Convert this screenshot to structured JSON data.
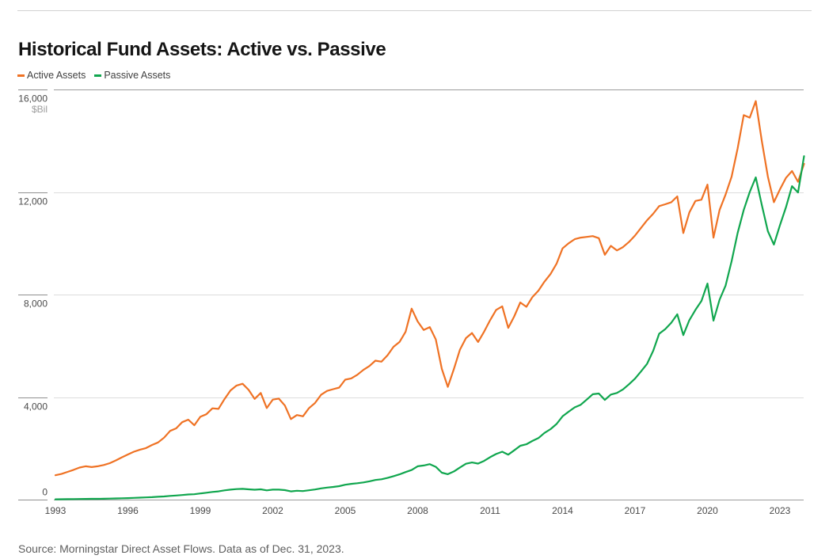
{
  "header": {
    "title": "Historical Fund Assets: Active vs. Passive"
  },
  "legend": [
    {
      "label": "Active Assets",
      "color": "#ef7224"
    },
    {
      "label": "Passive Assets",
      "color": "#10a64e"
    }
  ],
  "footer": {
    "source": "Source: Morningstar Direct Asset Flows. Data as of Dec. 31, 2023."
  },
  "chart_data": {
    "type": "line",
    "title": "Historical Fund Assets: Active vs. Passive",
    "xlabel": "",
    "ylabel": "$Bil",
    "unit_label": "$Bil",
    "xlim": [
      1993,
      2024
    ],
    "ylim": [
      0,
      16000
    ],
    "grid": true,
    "legend_position": "top-left",
    "y_ticks": [
      0,
      4000,
      8000,
      12000,
      16000
    ],
    "y_tick_labels": [
      "0",
      "4,000",
      "8,000",
      "12,000",
      "16,000"
    ],
    "x_tick_labels": [
      "1993",
      "1996",
      "1999",
      "2002",
      "2005",
      "2008",
      "2011",
      "2014",
      "2017",
      "2020",
      "2023"
    ],
    "x_tick_years": [
      1993,
      1996,
      1999,
      2002,
      2005,
      2008,
      2011,
      2014,
      2017,
      2020,
      2023
    ],
    "x_start": 1993,
    "x_step": 0.25,
    "series": [
      {
        "name": "Active Assets",
        "color": "#ef7224",
        "values": [
          950,
          1000,
          1080,
          1160,
          1250,
          1300,
          1270,
          1300,
          1350,
          1420,
          1530,
          1650,
          1760,
          1870,
          1950,
          2010,
          2130,
          2230,
          2420,
          2680,
          2780,
          3020,
          3120,
          2900,
          3230,
          3330,
          3560,
          3540,
          3920,
          4260,
          4450,
          4520,
          4280,
          3930,
          4160,
          3570,
          3900,
          3940,
          3670,
          3140,
          3300,
          3250,
          3570,
          3770,
          4090,
          4240,
          4310,
          4370,
          4680,
          4730,
          4870,
          5060,
          5210,
          5420,
          5380,
          5630,
          5960,
          6150,
          6550,
          7450,
          6950,
          6620,
          6730,
          6250,
          5100,
          4400,
          5100,
          5850,
          6300,
          6500,
          6150,
          6550,
          7000,
          7400,
          7540,
          6700,
          7150,
          7690,
          7520,
          7900,
          8150,
          8500,
          8800,
          9200,
          9800,
          10000,
          10160,
          10220,
          10250,
          10280,
          10200,
          9550,
          9900,
          9720,
          9850,
          10050,
          10300,
          10600,
          10900,
          11150,
          11450,
          11520,
          11600,
          11830,
          10400,
          11200,
          11650,
          11700,
          12290,
          10220,
          11300,
          11900,
          12600,
          13700,
          15000,
          14900,
          15550,
          14000,
          12600,
          11600,
          12100,
          12550,
          12820,
          12400,
          13100
        ]
      },
      {
        "name": "Passive Assets",
        "color": "#10a64e",
        "values": [
          12,
          15,
          18,
          21,
          25,
          28,
          30,
          32,
          35,
          40,
          45,
          52,
          60,
          68,
          76,
          85,
          95,
          110,
          125,
          145,
          160,
          180,
          200,
          210,
          240,
          270,
          300,
          320,
          360,
          390,
          410,
          420,
          400,
          385,
          400,
          360,
          390,
          390,
          370,
          320,
          345,
          335,
          365,
          395,
          440,
          470,
          495,
          525,
          580,
          615,
          640,
          670,
          715,
          765,
          795,
          845,
          915,
          985,
          1075,
          1155,
          1300,
          1330,
          1385,
          1280,
          1050,
          990,
          1100,
          1255,
          1400,
          1450,
          1405,
          1510,
          1655,
          1780,
          1870,
          1755,
          1925,
          2100,
          2160,
          2290,
          2400,
          2600,
          2750,
          2950,
          3250,
          3430,
          3600,
          3700,
          3900,
          4110,
          4140,
          3890,
          4100,
          4160,
          4300,
          4500,
          4720,
          5000,
          5300,
          5800,
          6470,
          6650,
          6900,
          7230,
          6420,
          7000,
          7400,
          7750,
          8430,
          6980,
          7800,
          8350,
          9300,
          10400,
          11300,
          12000,
          12570,
          11500,
          10470,
          9950,
          10700,
          11400,
          12230,
          11980,
          13400
        ]
      }
    ]
  }
}
